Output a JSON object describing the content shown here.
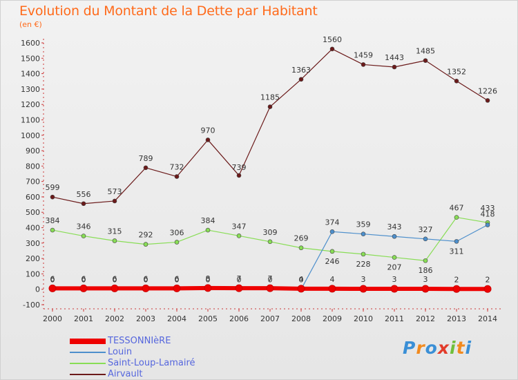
{
  "title": "Evolution du Montant de la Dette par Habitant",
  "unit": "(en €)",
  "logo": {
    "text": "Proxiti",
    "colors": [
      "#3a8fd6",
      "#f28a1e",
      "#3a8fd6",
      "#e23b2a",
      "#6fbf3a",
      "#f28a1e",
      "#3a8fd6"
    ]
  },
  "chart_data": {
    "type": "line",
    "title": "Evolution du Montant de la Dette par Habitant",
    "unit": "(en €)",
    "x": [
      2000,
      2001,
      2002,
      2003,
      2004,
      2005,
      2006,
      2007,
      2008,
      2009,
      2010,
      2011,
      2012,
      2013,
      2014
    ],
    "ylim": [
      -100,
      1600
    ],
    "yticks": [
      -100,
      0,
      100,
      200,
      300,
      400,
      500,
      600,
      700,
      800,
      900,
      1000,
      1100,
      1200,
      1300,
      1400,
      1500,
      1600
    ],
    "grid": false,
    "legend_position": "bottom-left",
    "series": [
      {
        "name": "TESSONNIèRE",
        "color": "#ee0000",
        "values": [
          6,
          6,
          6,
          6,
          6,
          8,
          7,
          7,
          4,
          4,
          3,
          3,
          3,
          2,
          2
        ],
        "labels": [
          "6",
          "6",
          "6",
          "6",
          "6",
          "8",
          "7",
          "7",
          "4",
          "4",
          "3",
          "3",
          "3",
          "2",
          "2"
        ]
      },
      {
        "name": "Louin",
        "color": "#4d8fcc",
        "values": [
          0,
          0,
          0,
          0,
          0,
          0,
          0,
          0,
          0,
          374,
          359,
          343,
          327,
          311,
          418
        ],
        "labels": [
          "0",
          "0",
          "0",
          "0",
          "0",
          "0",
          "0",
          "0",
          "0",
          "374",
          "359",
          "343",
          "327",
          "311",
          "418"
        ]
      },
      {
        "name": "Saint-Loup-Lamairé",
        "color": "#88dd55",
        "values": [
          384,
          346,
          315,
          292,
          306,
          384,
          347,
          309,
          269,
          246,
          228,
          207,
          186,
          467,
          433
        ],
        "labels": [
          "384",
          "346",
          "315",
          "292",
          "306",
          "384",
          "347",
          "309",
          "269",
          "246",
          "228",
          "207",
          "186",
          "467",
          "433"
        ]
      },
      {
        "name": "Airvault",
        "color": "#6b1a1a",
        "values": [
          599,
          556,
          573,
          789,
          732,
          970,
          739,
          1185,
          1363,
          1560,
          1459,
          1443,
          1485,
          1352,
          1226
        ],
        "labels": [
          "599",
          "556",
          "573",
          "789",
          "732",
          "970",
          "739",
          "1185",
          "1363",
          "1560",
          "1459",
          "1443",
          "1485",
          "1352",
          "1226"
        ]
      }
    ]
  }
}
